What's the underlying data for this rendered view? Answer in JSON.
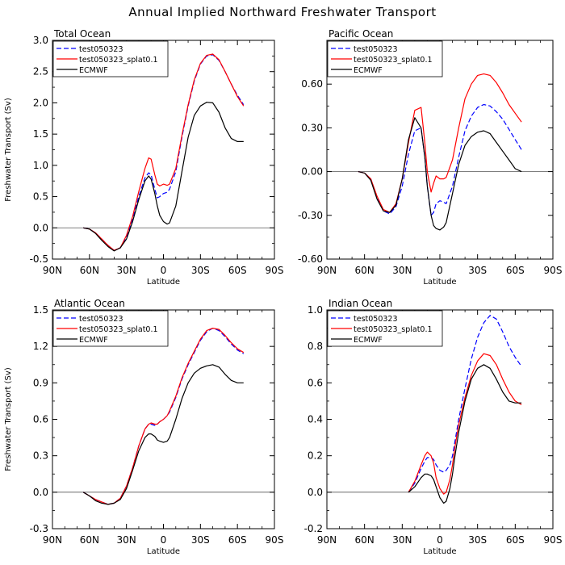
{
  "figure_title": "Annual Implied Northward Freshwater Transport",
  "colors": {
    "test": "#0000ff",
    "splat": "#ff0000",
    "ecmwf": "#000000"
  },
  "chart_data": [
    {
      "type": "line",
      "title": "Total Ocean",
      "xlabel": "Latitude",
      "ylabel": "Freshwater Transport (Sv)",
      "xlim": [
        90,
        -90
      ],
      "ylim": [
        -0.5,
        3.0
      ],
      "x_ticks": [
        90,
        60,
        30,
        0,
        -30,
        -60,
        -90
      ],
      "x_tick_labels": [
        "90N",
        "60N",
        "30N",
        "0",
        "30S",
        "60S",
        "90S"
      ],
      "y_ticks": [
        -0.5,
        0.0,
        0.5,
        1.0,
        1.5,
        2.0,
        2.5,
        3.0
      ],
      "y_tick_labels": [
        "-0.5",
        "0.0",
        "0.5",
        "1.0",
        "1.5",
        "2.0",
        "2.5",
        "3.0"
      ],
      "zero_line": true,
      "legend": [
        "test050323",
        "test050323_splat0.1",
        "ECMWF"
      ],
      "series": [
        {
          "name": "test050323",
          "style": "dashed",
          "color_key": "test",
          "x": [
            65,
            60,
            55,
            50,
            45,
            40,
            35,
            30,
            25,
            20,
            15,
            12,
            10,
            7,
            5,
            3,
            0,
            -3,
            -5,
            -10,
            -15,
            -20,
            -25,
            -30,
            -35,
            -40,
            -45,
            -50,
            -55,
            -60,
            -65
          ],
          "y": [
            0,
            -0.02,
            -0.08,
            -0.18,
            -0.28,
            -0.36,
            -0.32,
            -0.15,
            0.15,
            0.5,
            0.8,
            0.88,
            0.85,
            0.62,
            0.48,
            0.5,
            0.55,
            0.57,
            0.62,
            0.9,
            1.45,
            1.95,
            2.35,
            2.62,
            2.75,
            2.77,
            2.68,
            2.5,
            2.3,
            2.12,
            1.97
          ]
        },
        {
          "name": "test050323_splat0.1",
          "style": "solid",
          "color_key": "splat",
          "x": [
            65,
            60,
            55,
            50,
            45,
            40,
            35,
            30,
            25,
            20,
            15,
            12,
            10,
            7,
            5,
            3,
            0,
            -3,
            -5,
            -10,
            -15,
            -20,
            -25,
            -30,
            -35,
            -40,
            -45,
            -50,
            -55,
            -60,
            -65
          ],
          "y": [
            0,
            -0.02,
            -0.08,
            -0.18,
            -0.28,
            -0.36,
            -0.32,
            -0.12,
            0.18,
            0.58,
            0.95,
            1.12,
            1.1,
            0.85,
            0.7,
            0.67,
            0.7,
            0.68,
            0.7,
            0.95,
            1.48,
            1.97,
            2.37,
            2.63,
            2.76,
            2.78,
            2.69,
            2.5,
            2.3,
            2.1,
            1.95
          ]
        },
        {
          "name": "ECMWF",
          "style": "solid",
          "color_key": "ecmwf",
          "x": [
            65,
            60,
            55,
            50,
            45,
            40,
            35,
            30,
            25,
            20,
            15,
            12,
            10,
            7,
            5,
            3,
            0,
            -3,
            -5,
            -10,
            -15,
            -20,
            -25,
            -30,
            -35,
            -40,
            -45,
            -50,
            -55,
            -60,
            -65
          ],
          "y": [
            0,
            -0.02,
            -0.09,
            -0.2,
            -0.3,
            -0.37,
            -0.32,
            -0.18,
            0.1,
            0.45,
            0.75,
            0.83,
            0.78,
            0.55,
            0.35,
            0.2,
            0.1,
            0.06,
            0.08,
            0.35,
            0.9,
            1.45,
            1.8,
            1.95,
            2.01,
            2.0,
            1.85,
            1.6,
            1.43,
            1.38,
            1.38
          ]
        }
      ]
    },
    {
      "type": "line",
      "title": "Pacific Ocean",
      "xlabel": "Latitude",
      "ylabel": "",
      "xlim": [
        90,
        -90
      ],
      "ylim": [
        -0.6,
        0.9
      ],
      "x_ticks": [
        90,
        60,
        30,
        0,
        -30,
        -60,
        -90
      ],
      "x_tick_labels": [
        "90N",
        "60N",
        "30N",
        "0",
        "30S",
        "60S",
        "90S"
      ],
      "y_ticks": [
        -0.6,
        -0.3,
        0.0,
        0.3,
        0.6
      ],
      "y_tick_labels": [
        "-0.60",
        "-0.30",
        "0.00",
        "0.30",
        "0.60"
      ],
      "zero_line": true,
      "legend": [
        "test050323",
        "test050323_splat0.1",
        "ECMWF"
      ],
      "series": [
        {
          "name": "test050323",
          "style": "dashed",
          "color_key": "test",
          "x": [
            65,
            60,
            55,
            50,
            45,
            40,
            35,
            30,
            25,
            20,
            15,
            12,
            10,
            7,
            5,
            3,
            0,
            -3,
            -5,
            -10,
            -15,
            -20,
            -25,
            -30,
            -35,
            -40,
            -45,
            -50,
            -55,
            -60,
            -65
          ],
          "y": [
            0,
            -0.01,
            -0.05,
            -0.18,
            -0.27,
            -0.29,
            -0.24,
            -0.1,
            0.12,
            0.28,
            0.3,
            0.1,
            -0.1,
            -0.3,
            -0.28,
            -0.22,
            -0.2,
            -0.21,
            -0.22,
            -0.1,
            0.1,
            0.28,
            0.38,
            0.44,
            0.46,
            0.45,
            0.41,
            0.36,
            0.29,
            0.22,
            0.15
          ]
        },
        {
          "name": "test050323_splat0.1",
          "style": "solid",
          "color_key": "splat",
          "x": [
            65,
            60,
            55,
            50,
            45,
            40,
            35,
            30,
            25,
            20,
            15,
            12,
            10,
            7,
            5,
            3,
            0,
            -3,
            -5,
            -10,
            -15,
            -20,
            -25,
            -30,
            -35,
            -40,
            -45,
            -50,
            -55,
            -60,
            -65
          ],
          "y": [
            0,
            -0.01,
            -0.05,
            -0.17,
            -0.26,
            -0.28,
            -0.22,
            -0.05,
            0.2,
            0.42,
            0.44,
            0.2,
            0.0,
            -0.14,
            -0.08,
            -0.03,
            -0.05,
            -0.05,
            -0.04,
            0.08,
            0.3,
            0.5,
            0.6,
            0.66,
            0.67,
            0.66,
            0.61,
            0.54,
            0.46,
            0.4,
            0.34
          ]
        },
        {
          "name": "ECMWF",
          "style": "solid",
          "color_key": "ecmwf",
          "x": [
            65,
            60,
            55,
            50,
            45,
            40,
            35,
            30,
            25,
            20,
            15,
            12,
            10,
            7,
            5,
            3,
            0,
            -3,
            -5,
            -10,
            -15,
            -20,
            -25,
            -30,
            -35,
            -40,
            -45,
            -50,
            -55,
            -60,
            -65
          ],
          "y": [
            0,
            -0.01,
            -0.06,
            -0.19,
            -0.27,
            -0.28,
            -0.23,
            -0.05,
            0.22,
            0.37,
            0.3,
            0.1,
            -0.1,
            -0.3,
            -0.37,
            -0.39,
            -0.4,
            -0.38,
            -0.35,
            -0.15,
            0.05,
            0.18,
            0.24,
            0.27,
            0.28,
            0.26,
            0.2,
            0.14,
            0.08,
            0.02,
            0.0
          ]
        }
      ]
    },
    {
      "type": "line",
      "title": "Atlantic Ocean",
      "xlabel": "Latitude",
      "ylabel": "Freshwater Transport (Sv)",
      "xlim": [
        90,
        -90
      ],
      "ylim": [
        -0.3,
        1.5
      ],
      "x_ticks": [
        90,
        60,
        30,
        0,
        -30,
        -60,
        -90
      ],
      "x_tick_labels": [
        "90N",
        "60N",
        "30N",
        "0",
        "30S",
        "60S",
        "90S"
      ],
      "y_ticks": [
        -0.3,
        0.0,
        0.3,
        0.6,
        0.9,
        1.2,
        1.5
      ],
      "y_tick_labels": [
        "-0.3",
        "0.0",
        "0.3",
        "0.6",
        "0.9",
        "1.2",
        "1.5"
      ],
      "zero_line": true,
      "legend": [
        "test050323",
        "test050323_splat0.1",
        "ECMWF"
      ],
      "series": [
        {
          "name": "test050323",
          "style": "dashed",
          "color_key": "test",
          "x": [
            65,
            60,
            55,
            50,
            45,
            40,
            35,
            30,
            25,
            20,
            15,
            12,
            10,
            7,
            5,
            3,
            0,
            -3,
            -5,
            -10,
            -15,
            -20,
            -25,
            -30,
            -35,
            -40,
            -45,
            -50,
            -55,
            -60,
            -65
          ],
          "y": [
            0,
            -0.03,
            -0.06,
            -0.08,
            -0.1,
            -0.09,
            -0.05,
            0.05,
            0.2,
            0.38,
            0.52,
            0.56,
            0.56,
            0.55,
            0.56,
            0.58,
            0.6,
            0.63,
            0.66,
            0.78,
            0.93,
            1.05,
            1.15,
            1.25,
            1.32,
            1.35,
            1.33,
            1.28,
            1.22,
            1.17,
            1.14
          ]
        },
        {
          "name": "test050323_splat0.1",
          "style": "solid",
          "color_key": "splat",
          "x": [
            65,
            60,
            55,
            50,
            45,
            40,
            35,
            30,
            25,
            20,
            15,
            12,
            10,
            7,
            5,
            3,
            0,
            -3,
            -5,
            -10,
            -15,
            -20,
            -25,
            -30,
            -35,
            -40,
            -45,
            -50,
            -55,
            -60,
            -65
          ],
          "y": [
            0,
            -0.03,
            -0.06,
            -0.08,
            -0.1,
            -0.09,
            -0.05,
            0.05,
            0.2,
            0.38,
            0.52,
            0.56,
            0.57,
            0.56,
            0.56,
            0.58,
            0.6,
            0.63,
            0.67,
            0.79,
            0.94,
            1.06,
            1.16,
            1.26,
            1.33,
            1.35,
            1.34,
            1.29,
            1.23,
            1.18,
            1.15
          ]
        },
        {
          "name": "ECMWF",
          "style": "solid",
          "color_key": "ecmwf",
          "x": [
            65,
            60,
            55,
            50,
            45,
            40,
            35,
            30,
            25,
            20,
            15,
            12,
            10,
            7,
            5,
            3,
            0,
            -3,
            -5,
            -10,
            -15,
            -20,
            -25,
            -30,
            -35,
            -40,
            -45,
            -50,
            -55,
            -60,
            -65
          ],
          "y": [
            0,
            -0.03,
            -0.07,
            -0.09,
            -0.1,
            -0.09,
            -0.06,
            0.03,
            0.18,
            0.34,
            0.45,
            0.48,
            0.48,
            0.46,
            0.43,
            0.42,
            0.41,
            0.42,
            0.45,
            0.6,
            0.77,
            0.9,
            0.98,
            1.02,
            1.04,
            1.05,
            1.03,
            0.97,
            0.92,
            0.9,
            0.9
          ]
        }
      ]
    },
    {
      "type": "line",
      "title": "Indian Ocean",
      "xlabel": "Latitude",
      "ylabel": "",
      "xlim": [
        90,
        -90
      ],
      "ylim": [
        -0.2,
        1.0
      ],
      "x_ticks": [
        90,
        60,
        30,
        0,
        -30,
        -60,
        -90
      ],
      "x_tick_labels": [
        "90N",
        "60N",
        "30N",
        "0",
        "30S",
        "60S",
        "90S"
      ],
      "y_ticks": [
        -0.2,
        0.0,
        0.2,
        0.4,
        0.6,
        0.8,
        1.0
      ],
      "y_tick_labels": [
        "-0.2",
        "0.0",
        "0.2",
        "0.4",
        "0.6",
        "0.8",
        "1.0"
      ],
      "zero_line": true,
      "legend": [
        "test050323",
        "test050323_splat0.1",
        "ECMWF"
      ],
      "series": [
        {
          "name": "test050323",
          "style": "dashed",
          "color_key": "test",
          "x": [
            25,
            20,
            15,
            12,
            10,
            7,
            5,
            3,
            0,
            -3,
            -5,
            -8,
            -10,
            -12,
            -15,
            -20,
            -25,
            -30,
            -35,
            -40,
            -45,
            -50,
            -55,
            -60,
            -65
          ],
          "y": [
            0,
            0.05,
            0.13,
            0.17,
            0.19,
            0.19,
            0.18,
            0.15,
            0.12,
            0.11,
            0.12,
            0.15,
            0.2,
            0.28,
            0.4,
            0.57,
            0.73,
            0.85,
            0.93,
            0.97,
            0.95,
            0.88,
            0.8,
            0.74,
            0.69
          ]
        },
        {
          "name": "test050323_splat0.1",
          "style": "solid",
          "color_key": "splat",
          "x": [
            25,
            20,
            15,
            12,
            10,
            7,
            5,
            3,
            0,
            -3,
            -5,
            -8,
            -10,
            -12,
            -15,
            -20,
            -25,
            -30,
            -35,
            -40,
            -45,
            -50,
            -55,
            -60,
            -65
          ],
          "y": [
            0,
            0.06,
            0.15,
            0.2,
            0.22,
            0.2,
            0.16,
            0.08,
            0.02,
            -0.01,
            0.0,
            0.07,
            0.15,
            0.25,
            0.37,
            0.52,
            0.64,
            0.72,
            0.76,
            0.75,
            0.7,
            0.62,
            0.55,
            0.5,
            0.48
          ]
        },
        {
          "name": "ECMWF",
          "style": "solid",
          "color_key": "ecmwf",
          "x": [
            25,
            20,
            15,
            12,
            10,
            7,
            5,
            3,
            0,
            -3,
            -5,
            -8,
            -10,
            -12,
            -15,
            -20,
            -25,
            -30,
            -35,
            -40,
            -45,
            -50,
            -55,
            -60,
            -65
          ],
          "y": [
            0,
            0.03,
            0.08,
            0.1,
            0.1,
            0.09,
            0.07,
            0.03,
            -0.03,
            -0.06,
            -0.05,
            0.02,
            0.1,
            0.2,
            0.33,
            0.5,
            0.62,
            0.68,
            0.7,
            0.68,
            0.62,
            0.55,
            0.5,
            0.49,
            0.49
          ]
        }
      ]
    }
  ]
}
